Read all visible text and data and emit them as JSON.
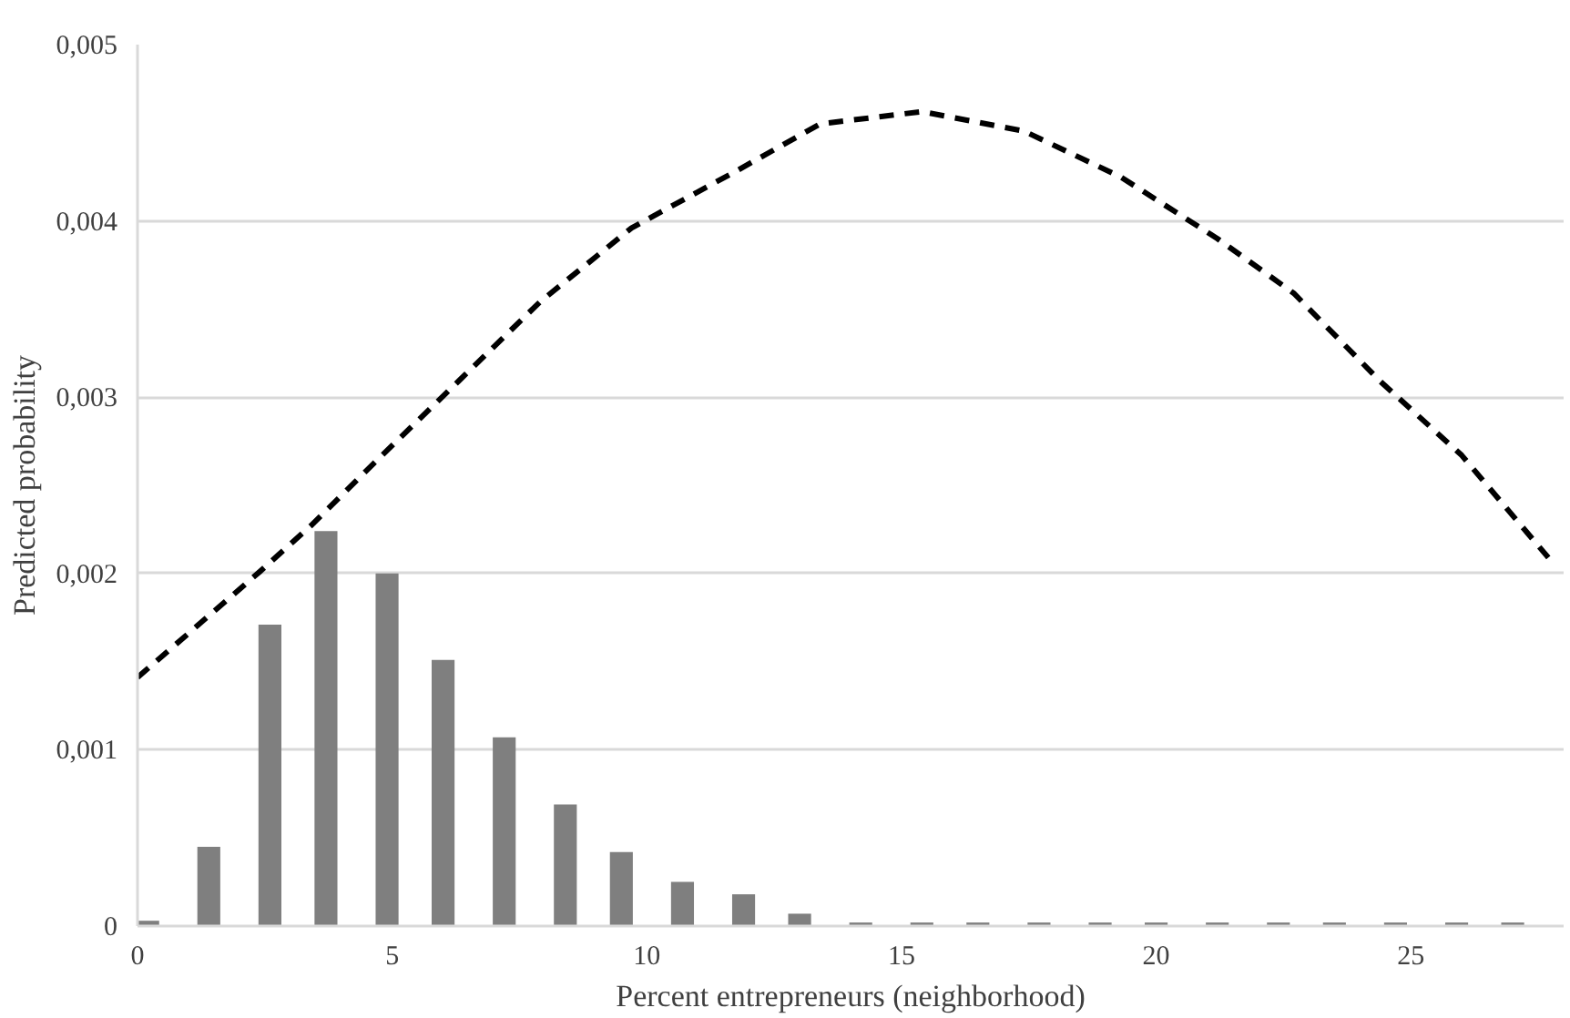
{
  "chart_data": {
    "type": "bar",
    "xlabel": "Percent entrepreneurs (neighborhood)",
    "ylabel": "Predicted probability",
    "xlim": [
      0,
      28
    ],
    "xticks": [
      0,
      5,
      10,
      15,
      20,
      25
    ],
    "ylim": [
      0,
      0.005
    ],
    "yticks": [
      {
        "value": 0,
        "label": "0"
      },
      {
        "value": 0.001,
        "label": "0,001"
      },
      {
        "value": 0.002,
        "label": "0,002"
      },
      {
        "value": 0.003,
        "label": "0,003"
      },
      {
        "value": 0.004,
        "label": "0,004"
      },
      {
        "value": 0.005,
        "label": "0,005"
      }
    ],
    "grid": "y",
    "line_style": "dashed",
    "series": [
      {
        "color": "#7f7f7f",
        "x": [
          0.2,
          1.4,
          2.6,
          3.7,
          4.9,
          6.0,
          7.2,
          8.4,
          9.5,
          10.7,
          11.9,
          13.0,
          14.2,
          15.4,
          16.5,
          17.7,
          18.9,
          20.0,
          21.2,
          22.4,
          23.5,
          24.7,
          25.9,
          27.0
        ],
        "values": [
          3e-05,
          0.00045,
          0.00171,
          0.00224,
          0.002,
          0.00151,
          0.00107,
          0.00069,
          0.00042,
          0.00025,
          0.00018,
          7e-05,
          2e-05,
          2e-05,
          2e-05,
          2e-05,
          2e-05,
          2e-05,
          2e-05,
          2e-05,
          2e-05,
          2e-05,
          2e-05,
          2e-05
        ]
      },
      {
        "type": "line",
        "color": "#000000",
        "x": [
          0,
          2.4,
          3.4,
          4.8,
          6.3,
          7.9,
          9.7,
          11.8,
          13.4,
          15.4,
          17.4,
          19.3,
          21.2,
          22.7,
          24.4,
          26.0,
          27.7
        ],
        "values": [
          0.00141,
          0.00201,
          0.00227,
          0.00267,
          0.00309,
          0.00354,
          0.00396,
          0.00429,
          0.00455,
          0.00462,
          0.00451,
          0.00425,
          0.0039,
          0.00359,
          0.00309,
          0.00267,
          0.00209
        ]
      }
    ]
  }
}
